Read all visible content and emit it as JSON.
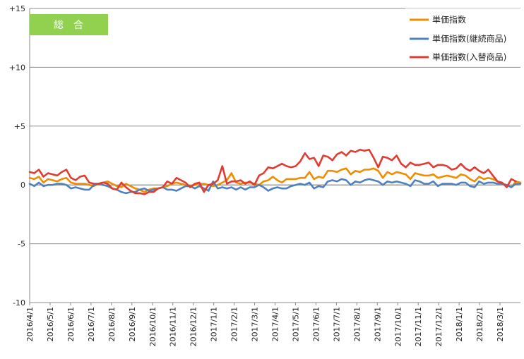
{
  "chart_data": {
    "type": "line",
    "title": "総合",
    "badge_color": "#92d050",
    "ylim": [
      -10,
      15
    ],
    "y_ticks": [
      {
        "value": 15,
        "label": "+15"
      },
      {
        "value": 10,
        "label": "+10"
      },
      {
        "value": 5,
        "label": "+5"
      },
      {
        "value": 0,
        "label": "0"
      },
      {
        "value": -5,
        "label": "-5"
      },
      {
        "value": -10,
        "label": "-10"
      }
    ],
    "x_tick_labels": [
      "2016/4/1",
      "2016/5/1",
      "2016/6/1",
      "2016/7/1",
      "2016/8/1",
      "2016/9/1",
      "2016/10/1",
      "2016/11/1",
      "2016/12/1",
      "2017/1/1",
      "2017/2/1",
      "2017/3/1",
      "2017/4/1",
      "2017/5/1",
      "2017/6/1",
      "2017/7/1",
      "2017/8/1",
      "2017/9/1",
      "2017/10/1",
      "2017/11/1",
      "2017/12/1",
      "2018/1/1",
      "2018/2/1",
      "2018/3/1"
    ],
    "gridlines": "horizontal",
    "legend_position": "top-right",
    "series": [
      {
        "name": "単価指数",
        "color": "#f08c00",
        "values": [
          0.6,
          0.5,
          0.7,
          0.2,
          0.5,
          0.4,
          0.3,
          0.5,
          0.6,
          0.2,
          0.1,
          0.1,
          0.1,
          0.0,
          -0.1,
          0.1,
          0.2,
          0.3,
          0.1,
          -0.1,
          -0.2,
          0.1,
          -0.1,
          -0.3,
          -0.4,
          -0.6,
          -0.4,
          -0.3,
          -0.3,
          -0.2,
          -0.1,
          0.1,
          0.2,
          0.1,
          0.0,
          -0.1,
          0.0,
          0.1,
          0.1,
          0.0,
          -0.1,
          0.0,
          0.2,
          0.4,
          1.0,
          0.2,
          0.1,
          0.2,
          0.2,
          0.1,
          0.0,
          0.3,
          0.4,
          0.7,
          0.4,
          0.2,
          0.5,
          0.5,
          0.5,
          0.6,
          0.6,
          1.1,
          0.5,
          0.7,
          0.6,
          1.2,
          1.2,
          1.1,
          1.3,
          1.4,
          0.9,
          1.2,
          1.1,
          1.3,
          1.3,
          1.4,
          1.2,
          0.6,
          1.1,
          0.9,
          1.1,
          1.0,
          0.9,
          0.5,
          1.0,
          0.9,
          0.8,
          0.8,
          0.9,
          0.6,
          0.7,
          0.8,
          0.7,
          0.6,
          0.9,
          0.8,
          0.5,
          0.3,
          0.7,
          0.5,
          0.6,
          0.5,
          0.3,
          0.1,
          0.0,
          -0.2,
          0.3,
          0.2
        ]
      },
      {
        "name": "単価指数(継続商品)",
        "color": "#4f81bd",
        "values": [
          0.1,
          -0.1,
          0.2,
          -0.1,
          0.0,
          0.0,
          0.1,
          0.1,
          0.0,
          -0.3,
          -0.2,
          -0.3,
          -0.4,
          -0.4,
          0.0,
          0.1,
          0.0,
          -0.1,
          -0.3,
          -0.4,
          -0.6,
          -0.7,
          -0.6,
          -0.6,
          -0.4,
          -0.3,
          -0.5,
          -0.4,
          -0.3,
          -0.2,
          -0.4,
          -0.4,
          -0.5,
          -0.3,
          -0.1,
          -0.1,
          -0.3,
          -0.1,
          -0.3,
          -0.5,
          0.3,
          -0.3,
          -0.2,
          -0.3,
          -0.2,
          -0.4,
          -0.2,
          -0.4,
          -0.2,
          -0.2,
          0.0,
          -0.2,
          -0.5,
          -0.3,
          -0.2,
          -0.3,
          -0.3,
          -0.1,
          0.0,
          0.1,
          0.0,
          0.2,
          -0.3,
          -0.1,
          -0.2,
          0.3,
          0.4,
          0.3,
          0.5,
          0.4,
          0.0,
          0.3,
          0.2,
          0.4,
          0.5,
          0.4,
          0.3,
          0.0,
          0.3,
          0.2,
          0.3,
          0.2,
          0.1,
          -0.1,
          0.4,
          0.3,
          0.1,
          0.1,
          0.3,
          -0.1,
          0.1,
          0.1,
          0.1,
          0.0,
          0.2,
          0.2,
          -0.1,
          -0.2,
          0.3,
          0.1,
          0.2,
          0.2,
          0.1,
          0.1,
          0.0,
          -0.2,
          0.1,
          0.1
        ]
      },
      {
        "name": "単価指数(入替商品)",
        "color": "#e03c31",
        "values": [
          1.1,
          1.0,
          1.3,
          0.7,
          1.0,
          0.9,
          0.8,
          1.1,
          1.3,
          0.6,
          0.4,
          0.7,
          0.8,
          0.2,
          0.1,
          0.1,
          0.2,
          0.1,
          -0.3,
          -0.4,
          0.2,
          -0.2,
          -0.5,
          -0.7,
          -0.7,
          -0.8,
          -0.6,
          -0.6,
          -0.3,
          -0.2,
          0.3,
          0.1,
          0.6,
          0.4,
          0.2,
          -0.2,
          0.1,
          0.2,
          -0.6,
          0.0,
          0.1,
          0.4,
          1.6,
          0.1,
          0.3,
          0.3,
          0.4,
          0.1,
          0.3,
          0.0,
          0.8,
          1.0,
          1.5,
          1.4,
          1.6,
          1.8,
          1.6,
          1.5,
          1.6,
          2.0,
          2.7,
          2.2,
          2.3,
          1.6,
          2.5,
          2.4,
          2.1,
          2.6,
          2.8,
          2.5,
          2.9,
          2.8,
          3.0,
          2.9,
          3.0,
          2.3,
          1.5,
          2.4,
          2.3,
          2.1,
          2.5,
          1.8,
          1.5,
          1.9,
          1.7,
          1.7,
          1.8,
          1.9,
          1.5,
          1.7,
          1.7,
          1.6,
          1.3,
          1.4,
          1.8,
          1.4,
          1.2,
          1.5,
          1.2,
          1.0,
          1.3,
          0.8,
          0.3,
          0.2,
          -0.2,
          0.5,
          0.3
        ]
      }
    ]
  }
}
